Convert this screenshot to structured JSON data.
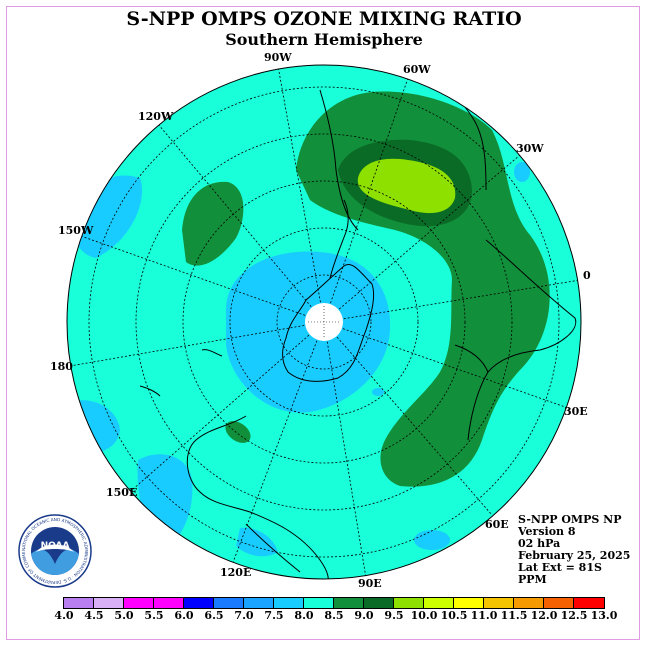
{
  "title": "S-NPP OMPS OZONE MIXING RATIO",
  "subtitle": "Southern Hemisphere",
  "info": {
    "line1": "S-NPP OMPS NP",
    "line2": "Version 8",
    "line3": "02 hPa",
    "line4": "February 25, 2025",
    "line5": "Lat Ext = 81S",
    "line6": "PPM"
  },
  "longitude_labels": [
    "90W",
    "60W",
    "120W",
    "30W",
    "150W",
    "0",
    "180",
    "30E",
    "150E",
    "60E",
    "120E",
    "90E"
  ],
  "colorbar": {
    "ticks": [
      "4.0",
      "4.5",
      "5.0",
      "5.5",
      "6.0",
      "6.5",
      "7.0",
      "7.5",
      "8.0",
      "8.5",
      "9.0",
      "9.5",
      "10.0",
      "10.5",
      "11.0",
      "11.5",
      "12.0",
      "12.5",
      "13.0"
    ],
    "colors": [
      "#b97ff0",
      "#d9b0f5",
      "#ff00ff",
      "#ff00ff",
      "#0000ff",
      "#1a7bff",
      "#1aa3ff",
      "#19ccff",
      "#19ffd9",
      "#128f3a",
      "#0a6b26",
      "#8ee000",
      "#ccff00",
      "#ffff00",
      "#f5c400",
      "#f59a00",
      "#f56000",
      "#ff0000",
      "#8b5a2b"
    ]
  },
  "logo": {
    "text": "NOAA",
    "ring_text": "NATIONAL OCEANIC AND ATMOSPHERIC ADMINISTRATION · U.S. DEPARTMENT OF COMMERCE"
  }
}
